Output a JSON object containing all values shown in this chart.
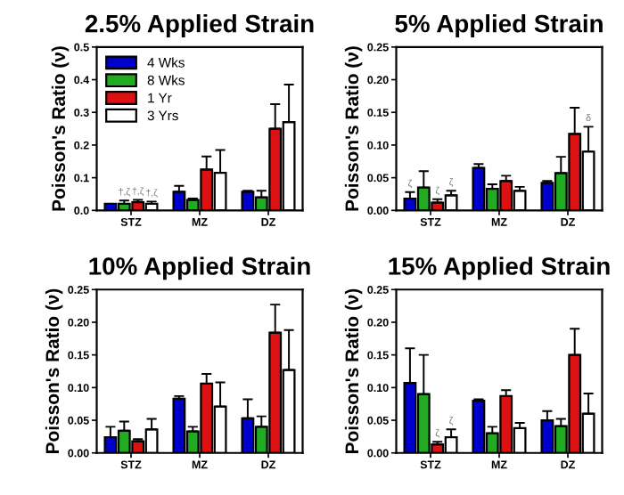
{
  "chart_data": [
    {
      "type": "bar",
      "title": "2.5% Applied Strain",
      "ylabel": "Poisson's Ratio (ν)",
      "categories": [
        "STZ",
        "MZ",
        "DZ"
      ],
      "ylim": [
        0,
        0.5
      ],
      "yticks": [
        {
          "value": 0,
          "label": "0.0"
        },
        {
          "value": 0.1,
          "label": "0.1"
        },
        {
          "value": 0.2,
          "label": "0.2"
        },
        {
          "value": 0.3,
          "label": "0.3"
        },
        {
          "value": 0.4,
          "label": "0.4"
        },
        {
          "value": 0.5,
          "label": "0.5"
        }
      ],
      "legend": "top left",
      "series": [
        {
          "name": "4 Wks",
          "color": "#0000cc",
          "values": [
            0.02,
            0.057,
            0.057
          ],
          "errors": [
            null,
            [
              0.057,
              0.075
            ],
            [
              0.057,
              0.06
            ]
          ]
        },
        {
          "name": "8 Wks",
          "color": "#22aa22",
          "values": [
            0.02,
            0.032,
            0.04
          ],
          "errors": [
            [
              0.02,
              0.03
            ],
            [
              0.032,
              0.036
            ],
            [
              0.04,
              0.06
            ]
          ]
        },
        {
          "name": "1 Yr",
          "color": "#dd1111",
          "values": [
            0.025,
            0.125,
            0.25
          ],
          "errors": [
            [
              0.025,
              0.032
            ],
            [
              0.125,
              0.165
            ],
            [
              0.25,
              0.325
            ]
          ]
        },
        {
          "name": "3 Yrs",
          "color": "#ffffff",
          "values": [
            0.02,
            0.115,
            0.27
          ],
          "errors": [
            [
              0.02,
              0.027
            ],
            [
              0.115,
              0.185
            ],
            [
              0.27,
              0.385
            ]
          ]
        }
      ],
      "annotations": [
        {
          "text": "†,ζ",
          "x": "STZ",
          "y": 0.03
        },
        {
          "text": "†,ζ",
          "x": "STZ",
          "y": 0.032
        },
        {
          "text": "†,ζ",
          "x": "STZ",
          "y": 0.027
        }
      ]
    },
    {
      "type": "bar",
      "title": "5% Applied Strain",
      "ylabel": "Poisson's Ratio (ν)",
      "categories": [
        "STZ",
        "MZ",
        "DZ"
      ],
      "ylim": [
        0,
        0.25
      ],
      "yticks": [
        {
          "value": 0,
          "label": "0.00"
        },
        {
          "value": 0.05,
          "label": "0.05"
        },
        {
          "value": 0.1,
          "label": "0.10"
        },
        {
          "value": 0.15,
          "label": "0.15"
        },
        {
          "value": 0.2,
          "label": "0.20"
        },
        {
          "value": 0.25,
          "label": "0.25"
        }
      ],
      "series": [
        {
          "color": "#0000cc",
          "values": [
            0.018,
            0.065,
            0.042
          ],
          "errors": [
            [
              0.018,
              0.028
            ],
            [
              0.065,
              0.071
            ],
            [
              0.042,
              0.045
            ]
          ]
        },
        {
          "color": "#22aa22",
          "values": [
            0.035,
            0.033,
            0.057
          ],
          "errors": [
            [
              0.035,
              0.06
            ],
            [
              0.033,
              0.04
            ],
            [
              0.057,
              0.082
            ]
          ]
        },
        {
          "color": "#dd1111",
          "values": [
            0.012,
            0.045,
            0.117
          ],
          "errors": [
            [
              0.012,
              0.017
            ],
            [
              0.045,
              0.053
            ],
            [
              0.117,
              0.157
            ]
          ]
        },
        {
          "color": "#ffffff",
          "values": [
            0.023,
            0.03,
            0.09
          ],
          "errors": [
            [
              0.023,
              0.03
            ],
            [
              0.03,
              0.036
            ],
            [
              0.09,
              0.128
            ]
          ]
        }
      ],
      "annotations": [
        {
          "text": "ζ",
          "x": "STZ",
          "y": 0.028
        },
        {
          "text": "ζ",
          "x": "STZ",
          "y": 0.017
        },
        {
          "text": "ζ",
          "x": "STZ",
          "y": 0.03
        },
        {
          "text": "δ",
          "x": "DZ",
          "y": 0.128
        }
      ]
    },
    {
      "type": "bar",
      "title": "10% Applied Strain",
      "ylabel": "Poisson's Ratio (ν)",
      "categories": [
        "STZ",
        "MZ",
        "DZ"
      ],
      "ylim": [
        0,
        0.25
      ],
      "yticks": [
        {
          "value": 0,
          "label": "0.00"
        },
        {
          "value": 0.05,
          "label": "0.05"
        },
        {
          "value": 0.1,
          "label": "0.10"
        },
        {
          "value": 0.15,
          "label": "0.15"
        },
        {
          "value": 0.2,
          "label": "0.20"
        },
        {
          "value": 0.25,
          "label": "0.25"
        }
      ],
      "series": [
        {
          "color": "#0000cc",
          "values": [
            0.024,
            0.083,
            0.053
          ],
          "errors": [
            [
              0.024,
              0.04
            ],
            [
              0.083,
              0.087
            ],
            [
              0.053,
              0.082
            ]
          ]
        },
        {
          "color": "#22aa22",
          "values": [
            0.034,
            0.033,
            0.04
          ],
          "errors": [
            [
              0.034,
              0.048
            ],
            [
              0.033,
              0.04
            ],
            [
              0.04,
              0.056
            ]
          ]
        },
        {
          "color": "#dd1111",
          "values": [
            0.018,
            0.106,
            0.184
          ],
          "errors": [
            [
              0.018,
              0.021
            ],
            [
              0.106,
              0.121
            ],
            [
              0.184,
              0.227
            ]
          ]
        },
        {
          "color": "#ffffff",
          "values": [
            0.036,
            0.071,
            0.127
          ],
          "errors": [
            [
              0.036,
              0.052
            ],
            [
              0.071,
              0.108
            ],
            [
              0.127,
              0.188
            ]
          ]
        }
      ]
    },
    {
      "type": "bar",
      "title": "15% Applied Strain",
      "ylabel": "Poisson's Ratio (ν)",
      "categories": [
        "STZ",
        "MZ",
        "DZ"
      ],
      "ylim": [
        0,
        0.25
      ],
      "yticks": [
        {
          "value": 0,
          "label": "0.00"
        },
        {
          "value": 0.05,
          "label": "0.05"
        },
        {
          "value": 0.1,
          "label": "0.10"
        },
        {
          "value": 0.15,
          "label": "0.15"
        },
        {
          "value": 0.2,
          "label": "0.20"
        },
        {
          "value": 0.25,
          "label": "0.25"
        }
      ],
      "series": [
        {
          "color": "#0000cc",
          "values": [
            0.107,
            0.08,
            0.05
          ],
          "errors": [
            [
              0.107,
              0.16
            ],
            [
              0.08,
              0.082
            ],
            [
              0.05,
              0.064
            ]
          ]
        },
        {
          "color": "#22aa22",
          "values": [
            0.09,
            0.03,
            0.041
          ],
          "errors": [
            [
              0.09,
              0.15
            ],
            [
              0.03,
              0.04
            ],
            [
              0.041,
              0.052
            ]
          ]
        },
        {
          "color": "#dd1111",
          "values": [
            0.013,
            0.087,
            0.15
          ],
          "errors": [
            [
              0.013,
              0.017
            ],
            [
              0.087,
              0.096
            ],
            [
              0.15,
              0.19
            ]
          ]
        },
        {
          "color": "#ffffff",
          "values": [
            0.024,
            0.038,
            0.06
          ],
          "errors": [
            [
              0.024,
              0.036
            ],
            [
              0.038,
              0.046
            ],
            [
              0.06,
              0.091
            ]
          ]
        }
      ],
      "annotations": [
        {
          "text": "ζ",
          "x": "STZ",
          "y": 0.017
        },
        {
          "text": "ζ",
          "x": "STZ",
          "y": 0.036
        }
      ]
    }
  ]
}
